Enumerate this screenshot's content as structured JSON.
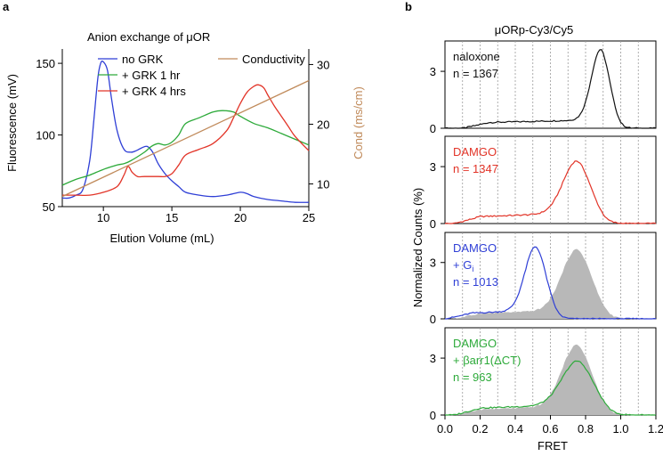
{
  "panel_a_label": "a",
  "panel_b_label": "b",
  "chart_data": [
    {
      "type": "line",
      "title": "Anion exchange of μOR",
      "xlabel": "Elution Volume (mL)",
      "ylabel": "Fluorescence (mV)",
      "y2label": "Cond (ms/cm)",
      "xlim": [
        7,
        25
      ],
      "ylim": [
        50,
        160
      ],
      "y2lim": [
        6.2,
        32.6
      ],
      "xticks": [
        10,
        15,
        20,
        25
      ],
      "yticks": [
        50,
        100,
        150
      ],
      "y2ticks": [
        10,
        20,
        30
      ],
      "legend": [
        "no GRK",
        "+ GRK 1 hr",
        "+ GRK 4 hrs",
        "Conductivity"
      ],
      "series": [
        {
          "name": "no GRK",
          "color": "#2f3fd6",
          "x": [
            7,
            7.5,
            8,
            8.5,
            9,
            9.3,
            9.6,
            9.8,
            10,
            10.3,
            10.6,
            11,
            11.5,
            12,
            12.4,
            12.8,
            13.2,
            13.6,
            14,
            14.5,
            15,
            15.5,
            16,
            17,
            18,
            19,
            20,
            20.5,
            21,
            22,
            23,
            24,
            25
          ],
          "y": [
            56,
            56,
            58,
            62,
            82,
            110,
            140,
            150,
            151,
            145,
            125,
            103,
            90,
            88,
            89,
            91,
            92,
            88,
            80,
            73,
            68,
            64,
            60,
            58,
            57,
            58,
            60,
            59,
            57,
            55,
            54,
            53,
            53
          ]
        },
        {
          "name": "+ GRK 1 hr",
          "color": "#2daa3a",
          "x": [
            7,
            8,
            9,
            10,
            11,
            11.5,
            12,
            13,
            13.5,
            14,
            14.5,
            15,
            15.5,
            16,
            17,
            18,
            18.7,
            19.5,
            20,
            21,
            22,
            23,
            24,
            25
          ],
          "y": [
            65,
            69,
            72,
            76,
            79,
            80,
            82,
            88,
            92,
            94,
            93,
            95,
            100,
            108,
            112,
            116,
            117,
            116,
            113,
            108,
            105,
            101,
            97,
            93
          ]
        },
        {
          "name": "+ GRK 4 hrs",
          "color": "#e23428",
          "x": [
            7,
            8,
            9,
            10,
            11,
            11.5,
            11.8,
            12.1,
            12.5,
            13,
            14,
            14.5,
            15,
            15.5,
            16,
            17,
            18,
            19,
            19.5,
            20,
            20.5,
            21,
            21.3,
            21.7,
            22,
            22.5,
            23,
            23.5,
            24,
            25
          ],
          "y": [
            58,
            58,
            58,
            60,
            64,
            72,
            78,
            74,
            71,
            71,
            71,
            71,
            73,
            79,
            86,
            90,
            94,
            103,
            112,
            122,
            130,
            134,
            135,
            133,
            128,
            120,
            113,
            106,
            99,
            89
          ]
        },
        {
          "name": "Conductivity",
          "color": "#c08a5a",
          "axis": "right",
          "x": [
            7,
            25
          ],
          "y": [
            7.9,
            27.3
          ]
        }
      ]
    },
    {
      "type": "histogram",
      "title": "μORp-Cy3/Cy5",
      "xlabel": "FRET",
      "ylabel": "Normalized Counts (%)",
      "xlim": [
        0.0,
        1.2
      ],
      "ylim": [
        0,
        4.6
      ],
      "xticks": [
        "0.0",
        "0.2",
        "0.4",
        "0.6",
        "0.8",
        "1.0",
        "1.2"
      ],
      "yticks": [
        0,
        3
      ],
      "grid_x": [
        0.1,
        0.2,
        0.3,
        0.4,
        0.5,
        0.6,
        0.7,
        0.8,
        0.9,
        1.0,
        1.1
      ],
      "reference_fill": {
        "color": "#b8b8b8",
        "mu": 0.75,
        "sigma": 0.085,
        "peak": 3.25,
        "baseline": 0.45
      },
      "panels": [
        {
          "lines": [
            "naloxone",
            "n = 1367"
          ],
          "color": "#111111",
          "shaded": false,
          "params": {
            "mu": 0.885,
            "sigma": 0.052,
            "peak": 3.7,
            "baseline": 0.45,
            "base_start": 0.1
          }
        },
        {
          "lines": [
            "DAMGO",
            "n = 1347"
          ],
          "color": "#e23428",
          "shaded": false,
          "params": {
            "mu": 0.75,
            "sigma": 0.078,
            "peak": 2.75,
            "baseline": 0.55,
            "base_start": 0.05
          }
        },
        {
          "lines": [
            "DAMGO",
            "+ G",
            "n = 1013"
          ],
          "subscript": "i",
          "color": "#2f3fd6",
          "shaded": true,
          "params": {
            "mu": 0.515,
            "sigma": 0.06,
            "peak": 3.4,
            "baseline": 0.45,
            "base_start": 0.0
          }
        },
        {
          "lines": [
            "DAMGO",
            "+ βarr1(ΔCT)",
            "n = 963"
          ],
          "color": "#2daa3a",
          "shaded": true,
          "params": {
            "mu": 0.755,
            "sigma": 0.09,
            "peak": 2.3,
            "baseline": 0.55,
            "base_start": 0.05
          }
        }
      ]
    }
  ]
}
